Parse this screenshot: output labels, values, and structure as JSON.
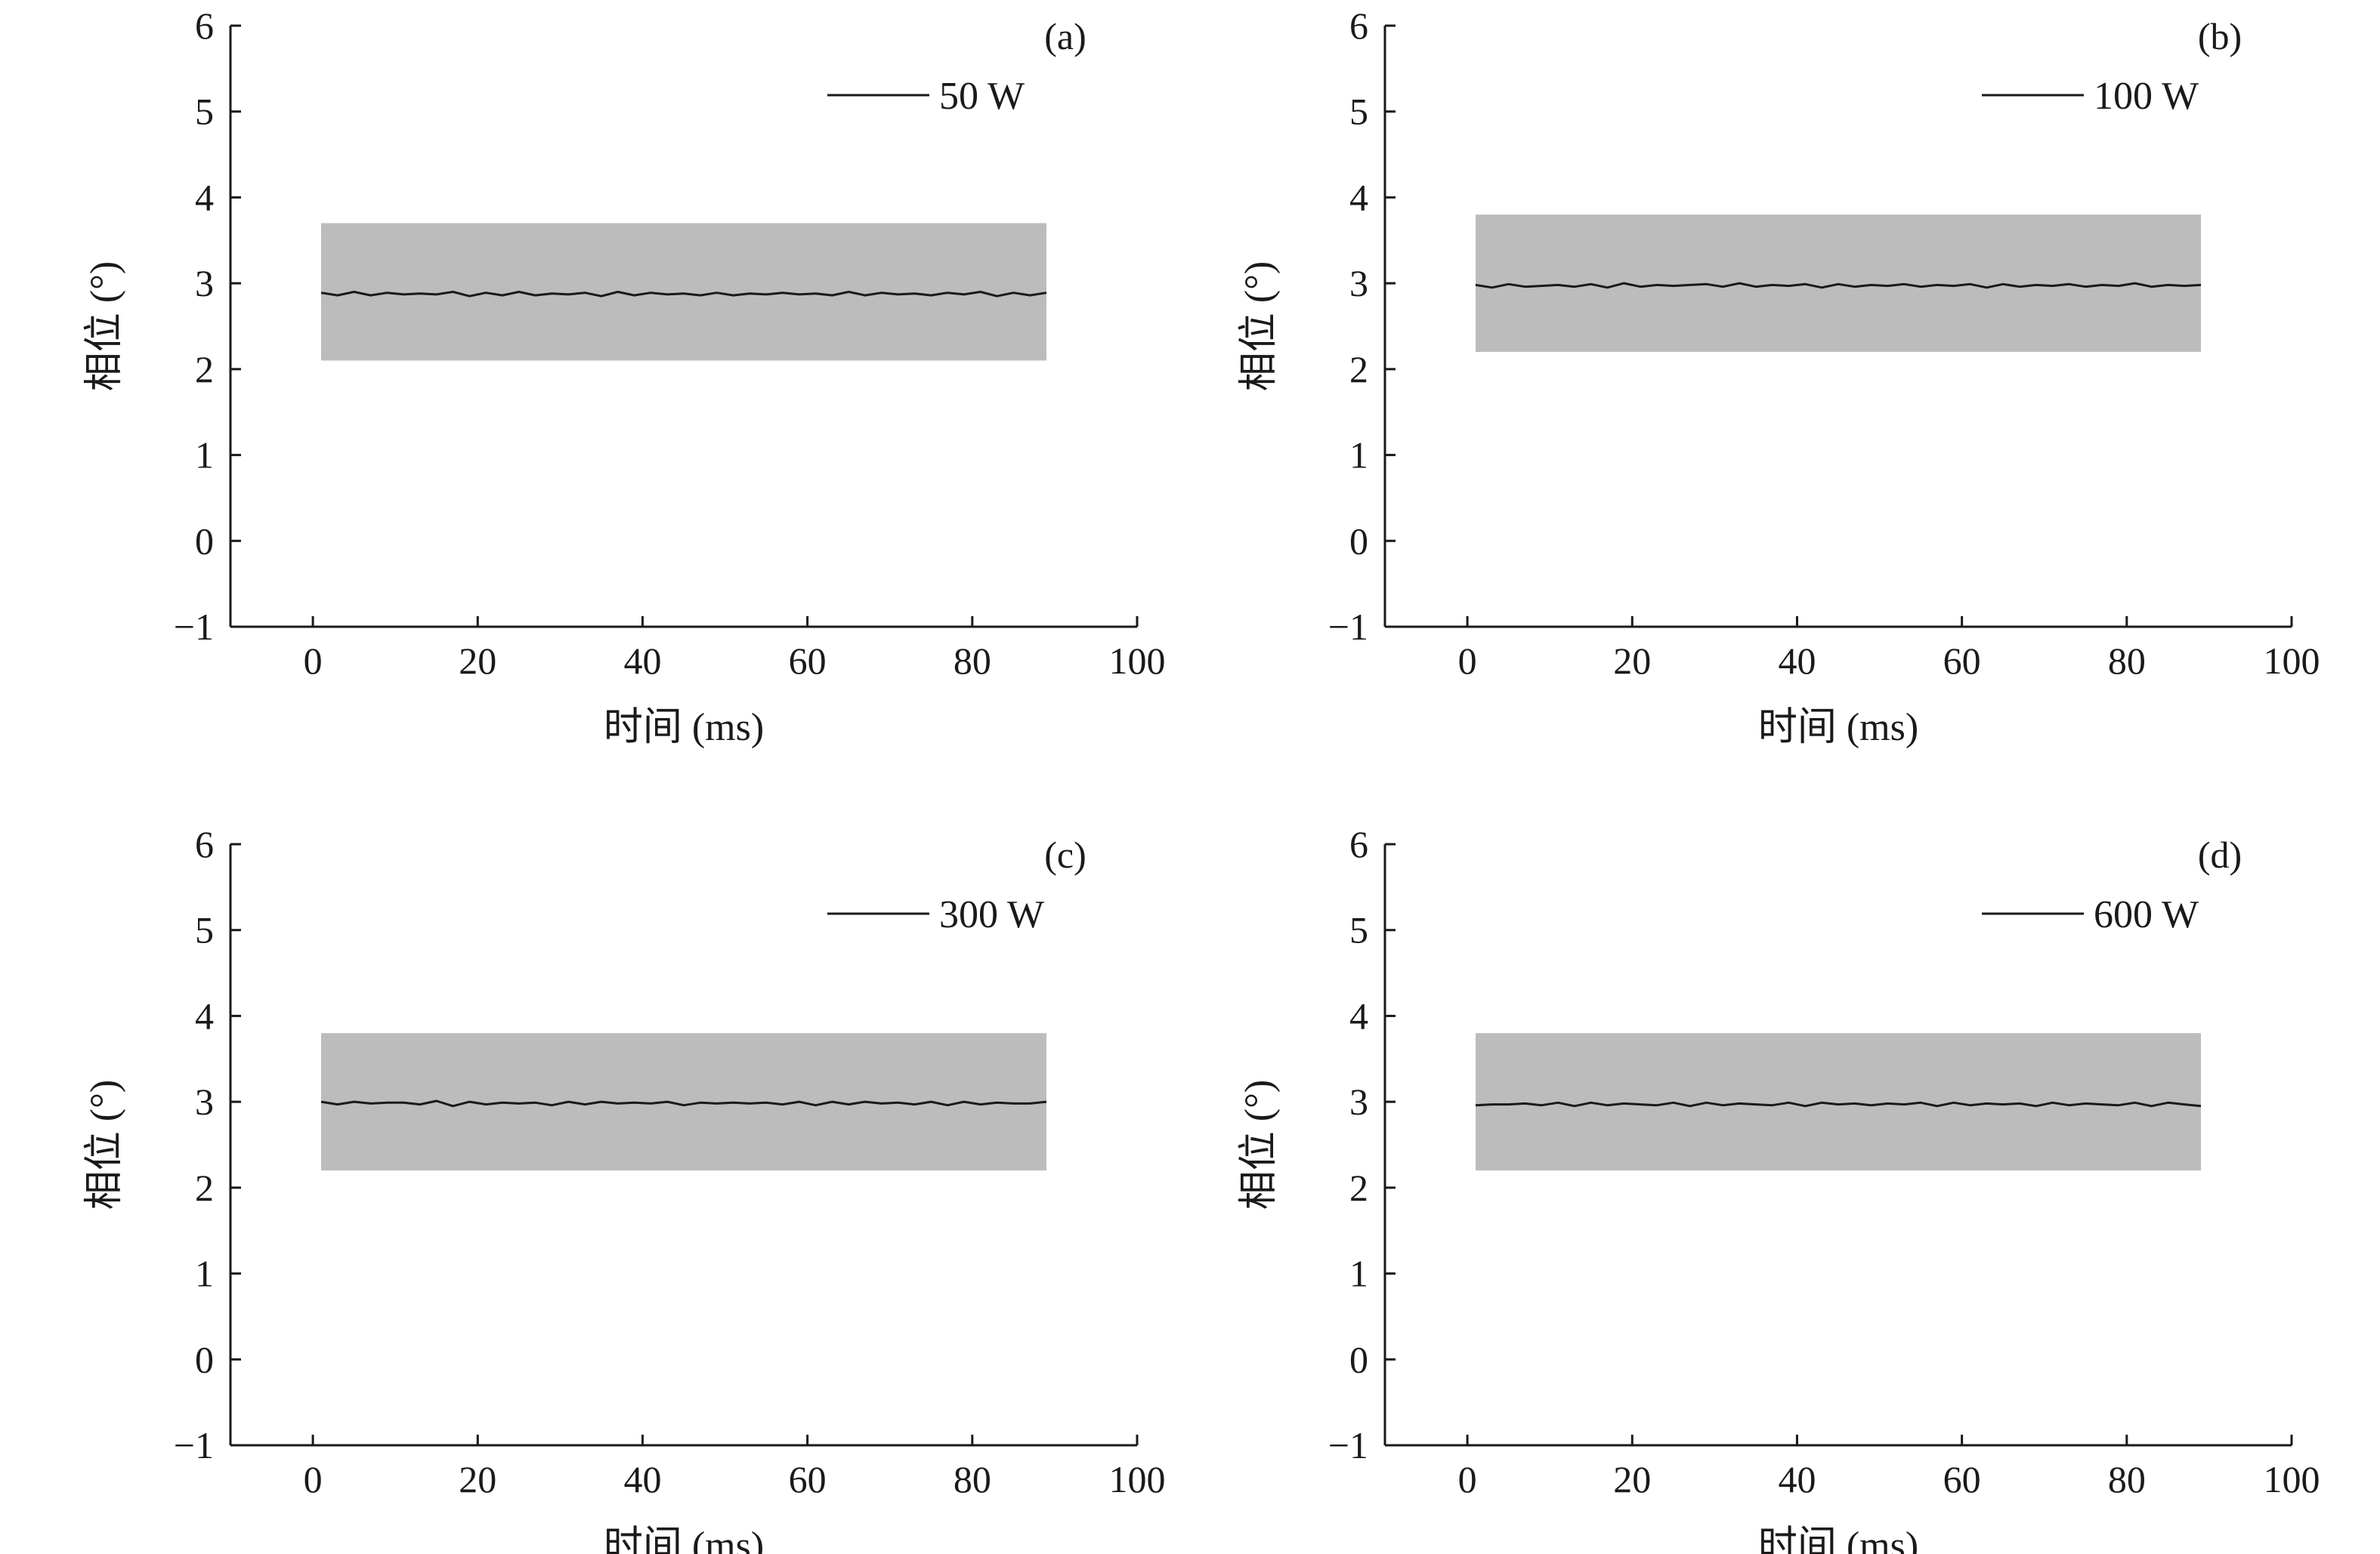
{
  "chart_data": [
    {
      "type": "line",
      "panel_label": "(a)",
      "xlabel": "时间 (ms)",
      "ylabel": "相位 (°)",
      "xlim": [
        -10,
        100
      ],
      "ylim": [
        -1,
        6
      ],
      "xticks": [
        0,
        20,
        40,
        60,
        80,
        100
      ],
      "yticks": [
        -1,
        0,
        1,
        2,
        3,
        4,
        5,
        6
      ],
      "xtick_labels": [
        "0",
        "20",
        "40",
        "60",
        "80",
        "100"
      ],
      "ytick_labels": [
        "−1",
        "0",
        "1",
        "2",
        "3",
        "4",
        "5",
        "6"
      ],
      "band": {
        "x": [
          1,
          89
        ],
        "y": [
          2.1,
          3.7
        ],
        "color": "#bdbcbc"
      },
      "legend_position": "top-right",
      "series": [
        {
          "name": "50 W",
          "color": "#1a1a1a",
          "x": [
            1,
            3,
            5,
            7,
            9,
            11,
            13,
            15,
            17,
            19,
            21,
            23,
            25,
            27,
            29,
            31,
            33,
            35,
            37,
            39,
            41,
            43,
            45,
            47,
            49,
            51,
            53,
            55,
            57,
            59,
            61,
            63,
            65,
            67,
            69,
            71,
            73,
            75,
            77,
            79,
            81,
            83,
            85,
            87,
            89
          ],
          "y": [
            2.89,
            2.86,
            2.9,
            2.86,
            2.89,
            2.87,
            2.88,
            2.87,
            2.9,
            2.85,
            2.89,
            2.86,
            2.9,
            2.86,
            2.88,
            2.87,
            2.89,
            2.85,
            2.9,
            2.86,
            2.89,
            2.87,
            2.88,
            2.86,
            2.89,
            2.86,
            2.88,
            2.87,
            2.89,
            2.87,
            2.88,
            2.86,
            2.9,
            2.86,
            2.89,
            2.87,
            2.88,
            2.86,
            2.89,
            2.87,
            2.9,
            2.85,
            2.89,
            2.86,
            2.89
          ]
        }
      ]
    },
    {
      "type": "line",
      "panel_label": "(b)",
      "xlabel": "时间 (ms)",
      "ylabel": "相位 (°)",
      "xlim": [
        -10,
        100
      ],
      "ylim": [
        -1,
        6
      ],
      "xticks": [
        0,
        20,
        40,
        60,
        80,
        100
      ],
      "yticks": [
        -1,
        0,
        1,
        2,
        3,
        4,
        5,
        6
      ],
      "xtick_labels": [
        "0",
        "20",
        "40",
        "60",
        "80",
        "100"
      ],
      "ytick_labels": [
        "−1",
        "0",
        "1",
        "2",
        "3",
        "4",
        "5",
        "6"
      ],
      "band": {
        "x": [
          1,
          89
        ],
        "y": [
          2.2,
          3.8
        ],
        "color": "#bdbcbc"
      },
      "legend_position": "top-right",
      "series": [
        {
          "name": "100 W",
          "color": "#1a1a1a",
          "x": [
            1,
            3,
            5,
            7,
            9,
            11,
            13,
            15,
            17,
            19,
            21,
            23,
            25,
            27,
            29,
            31,
            33,
            35,
            37,
            39,
            41,
            43,
            45,
            47,
            49,
            51,
            53,
            55,
            57,
            59,
            61,
            63,
            65,
            67,
            69,
            71,
            73,
            75,
            77,
            79,
            81,
            83,
            85,
            87,
            89
          ],
          "y": [
            2.98,
            2.95,
            2.99,
            2.96,
            2.97,
            2.98,
            2.96,
            2.99,
            2.95,
            3.0,
            2.96,
            2.98,
            2.97,
            2.98,
            2.99,
            2.96,
            3.0,
            2.96,
            2.98,
            2.97,
            2.99,
            2.95,
            2.99,
            2.96,
            2.98,
            2.97,
            2.99,
            2.96,
            2.98,
            2.97,
            2.99,
            2.95,
            2.99,
            2.96,
            2.98,
            2.97,
            2.99,
            2.96,
            2.98,
            2.97,
            3.0,
            2.96,
            2.98,
            2.97,
            2.98
          ]
        }
      ]
    },
    {
      "type": "line",
      "panel_label": "(c)",
      "xlabel": "时间 (ms)",
      "ylabel": "相位 (°)",
      "xlim": [
        -10,
        100
      ],
      "ylim": [
        -1,
        6
      ],
      "xticks": [
        0,
        20,
        40,
        60,
        80,
        100
      ],
      "yticks": [
        -1,
        0,
        1,
        2,
        3,
        4,
        5,
        6
      ],
      "xtick_labels": [
        "0",
        "20",
        "40",
        "60",
        "80",
        "100"
      ],
      "ytick_labels": [
        "−1",
        "0",
        "1",
        "2",
        "3",
        "4",
        "5",
        "6"
      ],
      "band": {
        "x": [
          1,
          89
        ],
        "y": [
          2.2,
          3.8
        ],
        "color": "#bdbcbc"
      },
      "legend_position": "top-right",
      "series": [
        {
          "name": "300 W",
          "color": "#1a1a1a",
          "x": [
            1,
            3,
            5,
            7,
            9,
            11,
            13,
            15,
            17,
            19,
            21,
            23,
            25,
            27,
            29,
            31,
            33,
            35,
            37,
            39,
            41,
            43,
            45,
            47,
            49,
            51,
            53,
            55,
            57,
            59,
            61,
            63,
            65,
            67,
            69,
            71,
            73,
            75,
            77,
            79,
            81,
            83,
            85,
            87,
            89
          ],
          "y": [
            3.0,
            2.97,
            3.0,
            2.98,
            2.99,
            2.99,
            2.97,
            3.01,
            2.95,
            3.0,
            2.97,
            2.99,
            2.98,
            2.99,
            2.96,
            3.0,
            2.97,
            3.0,
            2.98,
            2.99,
            2.98,
            3.0,
            2.96,
            2.99,
            2.98,
            2.99,
            2.98,
            2.99,
            2.97,
            3.0,
            2.96,
            3.0,
            2.97,
            3.0,
            2.98,
            2.99,
            2.97,
            3.0,
            2.96,
            3.0,
            2.97,
            2.99,
            2.98,
            2.98,
            3.0
          ]
        }
      ]
    },
    {
      "type": "line",
      "panel_label": "(d)",
      "xlabel": "时间 (ms)",
      "ylabel": "相位 (°)",
      "xlim": [
        -10,
        100
      ],
      "ylim": [
        -1,
        6
      ],
      "xticks": [
        0,
        20,
        40,
        60,
        80,
        100
      ],
      "yticks": [
        -1,
        0,
        1,
        2,
        3,
        4,
        5,
        6
      ],
      "xtick_labels": [
        "0",
        "20",
        "40",
        "60",
        "80",
        "100"
      ],
      "ytick_labels": [
        "−1",
        "0",
        "1",
        "2",
        "3",
        "4",
        "5",
        "6"
      ],
      "band": {
        "x": [
          1,
          89
        ],
        "y": [
          2.2,
          3.8
        ],
        "color": "#bdbcbc"
      },
      "legend_position": "top-right",
      "series": [
        {
          "name": "600 W",
          "color": "#1a1a1a",
          "x": [
            1,
            3,
            5,
            7,
            9,
            11,
            13,
            15,
            17,
            19,
            21,
            23,
            25,
            27,
            29,
            31,
            33,
            35,
            37,
            39,
            41,
            43,
            45,
            47,
            49,
            51,
            53,
            55,
            57,
            59,
            61,
            63,
            65,
            67,
            69,
            71,
            73,
            75,
            77,
            79,
            81,
            83,
            85,
            87,
            89
          ],
          "y": [
            2.96,
            2.97,
            2.97,
            2.98,
            2.96,
            2.99,
            2.95,
            2.99,
            2.96,
            2.98,
            2.97,
            2.96,
            2.99,
            2.95,
            2.99,
            2.96,
            2.98,
            2.97,
            2.96,
            2.99,
            2.95,
            2.99,
            2.97,
            2.98,
            2.96,
            2.98,
            2.97,
            2.99,
            2.95,
            2.99,
            2.96,
            2.98,
            2.97,
            2.98,
            2.95,
            2.99,
            2.96,
            2.98,
            2.97,
            2.96,
            2.99,
            2.95,
            2.99,
            2.97,
            2.95
          ]
        }
      ]
    }
  ]
}
